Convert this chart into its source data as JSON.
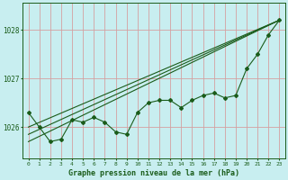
{
  "title": "Graphe pression niveau de la mer (hPa)",
  "bg_color": "#c8eef0",
  "line_color": "#1a5c1a",
  "vgrid_color": "#d4a0a0",
  "hgrid_color": "#b8d8d8",
  "xlim": [
    -0.5,
    23.5
  ],
  "ylim": [
    1025.35,
    1028.55
  ],
  "yticks": [
    1026,
    1027,
    1028
  ],
  "xticks": [
    0,
    1,
    2,
    3,
    4,
    5,
    6,
    7,
    8,
    9,
    10,
    11,
    12,
    13,
    14,
    15,
    16,
    17,
    18,
    19,
    20,
    21,
    22,
    23
  ],
  "series1": [
    1026.3,
    1026.0,
    1025.7,
    1025.75,
    1026.15,
    1026.1,
    1026.2,
    1026.1,
    1025.9,
    1025.85,
    1026.3,
    1026.5,
    1026.55,
    1026.55,
    1026.4,
    1026.55,
    1026.65,
    1026.7,
    1026.6,
    1026.65,
    1027.2,
    1027.5,
    1027.9,
    1028.2
  ],
  "trend1_x": [
    0,
    23
  ],
  "trend1_y": [
    1026.0,
    1028.2
  ],
  "trend2_x": [
    0,
    23
  ],
  "trend2_y": [
    1025.85,
    1028.2
  ],
  "trend3_x": [
    0,
    23
  ],
  "trend3_y": [
    1025.7,
    1028.2
  ]
}
